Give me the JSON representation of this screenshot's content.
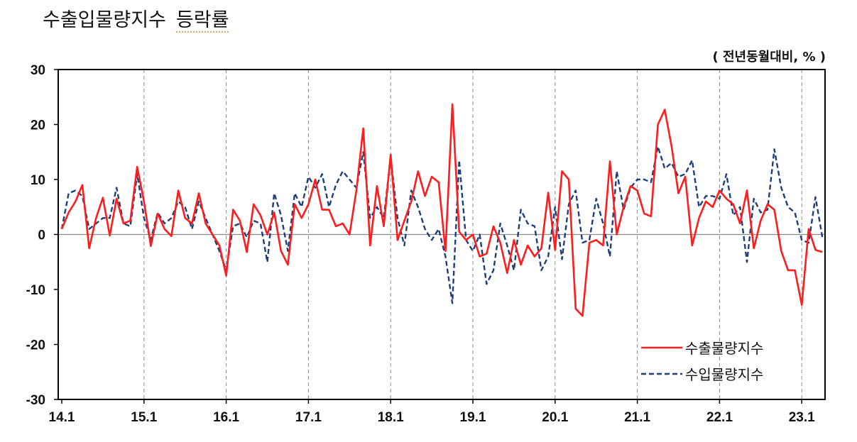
{
  "title_main": "수출입물량지수",
  "title_sub": "등락률",
  "unit": "( 전년동월대비, % )",
  "chart_data": {
    "type": "line",
    "title": "수출입물량지수 등락률",
    "ylabel": "",
    "xlabel": "",
    "ylim": [
      -30,
      30
    ],
    "yticks": [
      30,
      20,
      10,
      0,
      -10,
      -20,
      -30
    ],
    "x_tick_labels": [
      "14.1",
      "15.1",
      "16.1",
      "17.1",
      "18.1",
      "19.1",
      "20.1",
      "21.1",
      "22.1",
      "23.1"
    ],
    "x_start": "2014.1",
    "grid": "vertical dashed at January of each year",
    "legend_position": "bottom-right",
    "series": [
      {
        "name": "수출물량지수",
        "color": "#ff1c1c",
        "style": "solid",
        "values": [
          1.0,
          4.0,
          6.0,
          9.0,
          -2.5,
          3.0,
          6.7,
          -0.2,
          6.5,
          2.0,
          2.5,
          12.3,
          6.0,
          -2.1,
          3.8,
          1.0,
          -0.3,
          8.0,
          3.0,
          2.0,
          7.5,
          2.0,
          0.0,
          -2.0,
          -7.5,
          4.5,
          2.5,
          -3.2,
          5.5,
          3.5,
          0.0,
          4.0,
          -3.0,
          -5.5,
          5.5,
          3.0,
          5.5,
          10.0,
          4.5,
          4.5,
          1.5,
          2.0,
          0.0,
          8.0,
          19.3,
          -2.0,
          8.8,
          1.5,
          14.5,
          -1.0,
          2.5,
          6.0,
          11.5,
          7.0,
          10.5,
          9.5,
          -3.0,
          23.7,
          0.5,
          -1.0,
          0.0,
          -4.0,
          -3.5,
          1.5,
          -1.5,
          -7.0,
          -1.0,
          -5.5,
          -2.0,
          -4.0,
          -2.5,
          7.6,
          -2.8,
          11.5,
          10.0,
          -13.5,
          -14.8,
          -1.5,
          -1.0,
          -2.0,
          13.3,
          0.0,
          5.0,
          8.8,
          8.0,
          3.8,
          3.3,
          20.0,
          22.7,
          16.0,
          7.5,
          10.5,
          -2.0,
          3.0,
          6.0,
          5.0,
          8.0,
          6.5,
          5.5,
          2.0,
          8.0,
          -2.5,
          2.5,
          5.5,
          4.5,
          -3.0,
          -6.5,
          -6.5,
          -12.8,
          1.0,
          -2.8,
          -3.2
        ]
      },
      {
        "name": "수입물량지수",
        "color": "#1f3f7a",
        "style": "dashed",
        "values": [
          1.0,
          7.5,
          8.0,
          7.0,
          1.0,
          2.0,
          3.0,
          3.0,
          8.5,
          2.0,
          1.5,
          11.0,
          3.0,
          -1.0,
          4.0,
          2.0,
          3.0,
          6.0,
          5.0,
          1.0,
          6.0,
          3.0,
          0.0,
          -3.0,
          -6.5,
          1.5,
          2.0,
          -0.5,
          2.5,
          2.0,
          -5.0,
          7.5,
          3.5,
          -3.0,
          7.5,
          5.0,
          10.5,
          8.5,
          11.0,
          5.0,
          9.0,
          11.5,
          10.0,
          8.5,
          15.0,
          3.0,
          5.0,
          3.0,
          14.0,
          3.0,
          -2.0,
          8.0,
          5.0,
          1.0,
          -1.0,
          1.0,
          -4.0,
          -12.5,
          13.5,
          -1.0,
          -3.0,
          0.0,
          -9.0,
          -6.5,
          2.0,
          -2.0,
          -6.5,
          4.5,
          2.0,
          1.5,
          -6.5,
          -4.0,
          5.0,
          -4.5,
          5.5,
          8.0,
          -1.5,
          -1.0,
          6.5,
          2.0,
          -4.0,
          11.5,
          4.5,
          8.5,
          10.0,
          10.0,
          9.5,
          16.0,
          12.0,
          13.0,
          10.5,
          11.0,
          13.5,
          5.0,
          7.0,
          7.0,
          6.5,
          11.0,
          3.5,
          5.0,
          -5.0,
          6.5,
          4.0,
          4.5,
          15.5,
          8.5,
          5.0,
          4.0,
          -1.0,
          -1.5,
          6.8,
          -0.5
        ]
      }
    ]
  }
}
